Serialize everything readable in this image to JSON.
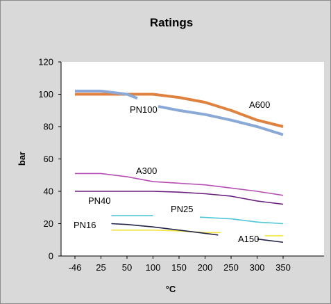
{
  "chart_data": {
    "type": "line",
    "title": "Ratings",
    "xlabel": "°C",
    "ylabel": "bar",
    "categories": [
      "-46",
      "25",
      "50",
      "100",
      "150",
      "200",
      "250",
      "300",
      "350"
    ],
    "ylim": [
      0,
      120
    ],
    "yticks": [
      0,
      20,
      40,
      60,
      80,
      100,
      120
    ],
    "grid": false,
    "legend": "none (series labelled directly on the plot)",
    "plot_background": "#ffffff",
    "chart_background": "#d9d9d9",
    "series": [
      {
        "name": "A600",
        "color": "#e0823f",
        "segments": [
          [
            [
              0,
              100
            ],
            [
              1,
              100
            ],
            [
              2,
              100
            ],
            [
              3,
              100
            ],
            [
              4,
              98
            ],
            [
              5,
              95
            ],
            [
              6,
              90
            ],
            [
              7,
              84
            ],
            [
              8,
              80
            ]
          ]
        ]
      },
      {
        "name": "PN100",
        "color": "#8aa9d6",
        "segments": [
          [
            [
              0,
              102
            ],
            [
              1,
              102
            ],
            [
              2,
              100
            ],
            [
              2.4,
              97.5
            ]
          ],
          [
            [
              3.2,
              92.5
            ],
            [
              4,
              90
            ],
            [
              5,
              87.5
            ],
            [
              6,
              84
            ],
            [
              7,
              80
            ],
            [
              8,
              75
            ]
          ]
        ]
      },
      {
        "name": "A300",
        "color": "#b54fb3",
        "segments": [
          [
            [
              0,
              51
            ],
            [
              1,
              51
            ],
            [
              2,
              49
            ],
            [
              3,
              46
            ],
            [
              4,
              45
            ],
            [
              5,
              44
            ],
            [
              6,
              42
            ],
            [
              7,
              40
            ],
            [
              8,
              37.5
            ]
          ]
        ]
      },
      {
        "name": "PN40",
        "color": "#6a1f7e",
        "segments": [
          [
            [
              0,
              40
            ],
            [
              1,
              40
            ],
            [
              2,
              40
            ],
            [
              3,
              40
            ],
            [
              4,
              39.5
            ],
            [
              5,
              38.5
            ],
            [
              6,
              37
            ],
            [
              7,
              34
            ],
            [
              8,
              32
            ]
          ]
        ]
      },
      {
        "name": "PN25",
        "color": "#4fc7d6",
        "segments": [
          [
            [
              1.4,
              25
            ],
            [
              3.0,
              25
            ]
          ],
          [
            [
              4.8,
              24
            ],
            [
              6,
              23
            ],
            [
              7,
              21
            ],
            [
              8,
              20
            ]
          ]
        ]
      },
      {
        "name": "PN16",
        "color": "#f2e63a",
        "segments": [
          [
            [
              1.4,
              16
            ],
            [
              2,
              16
            ],
            [
              3,
              16
            ],
            [
              4,
              15.5
            ],
            [
              5,
              14.5
            ],
            [
              5.6,
              14.5
            ]
          ],
          [
            [
              7.3,
              12.5
            ],
            [
              8,
              12.5
            ]
          ]
        ]
      },
      {
        "name": "A150",
        "color": "#23234a",
        "segments": [
          [
            [
              1.4,
              20
            ],
            [
              2,
              19.5
            ],
            [
              3,
              18
            ],
            [
              4,
              16
            ],
            [
              5,
              14
            ],
            [
              5.5,
              13
            ]
          ],
          [
            [
              7.0,
              10.5
            ],
            [
              8,
              8.5
            ]
          ]
        ]
      }
    ]
  }
}
